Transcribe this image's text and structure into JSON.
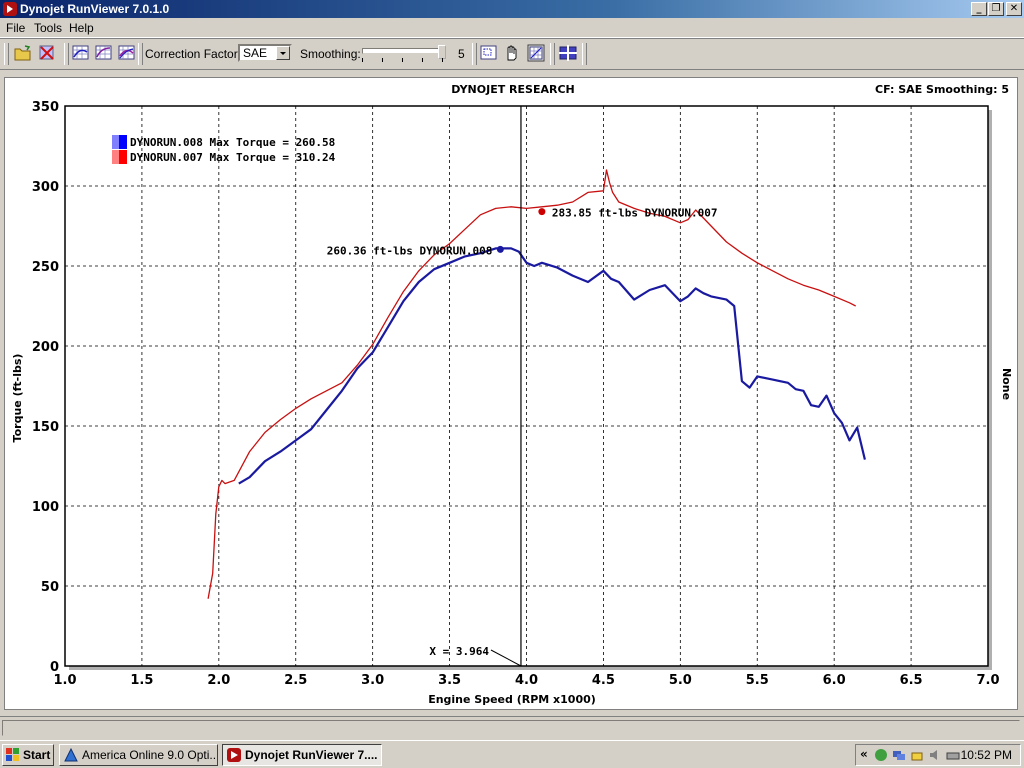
{
  "window": {
    "title": "Dynojet RunViewer 7.0.1.0"
  },
  "menu": [
    "File",
    "Tools",
    "Help"
  ],
  "toolbar": {
    "correction_factor_label": "Correction Factor:",
    "correction_factor_value": "SAE",
    "smoothing_label": "Smoothing:",
    "smoothing_value": "5",
    "smoothing_level_fraction": 1.0
  },
  "header": {
    "title": "DYNOJET RESEARCH",
    "status": "CF: SAE  Smoothing: 5",
    "side_label": "None"
  },
  "chart_data": {
    "type": "line",
    "xlabel": "Engine Speed (RPM x1000)",
    "ylabel": "Torque (ft-lbs)",
    "xlim": [
      1.0,
      7.0
    ],
    "ylim": [
      0,
      350
    ],
    "xticks": [
      "1.0",
      "1.5",
      "2.0",
      "2.5",
      "3.0",
      "3.5",
      "4.0",
      "4.5",
      "5.0",
      "5.5",
      "6.0",
      "6.5",
      "7.0"
    ],
    "yticks": [
      "0",
      "50",
      "100",
      "150",
      "200",
      "250",
      "300",
      "350"
    ],
    "grid": true,
    "legend": [
      {
        "label": "DYNORUN.008 Max Torque = 260.58",
        "color": "#0000ff"
      },
      {
        "label": "DYNORUN.007 Max Torque = 310.24",
        "color": "#ff0000"
      }
    ],
    "cursor": {
      "x": 3.964,
      "label": "X = 3.964"
    },
    "annotations": [
      {
        "text": "283.85 ft-lbs DYNORUN.007",
        "x": 4.1,
        "y": 284,
        "color": "#cc0000"
      },
      {
        "text": "260.36 ft-lbs DYNORUN.008",
        "x": 3.83,
        "y": 260.4,
        "color": "#1a1aa0"
      }
    ],
    "series": [
      {
        "name": "DYNORUN.008",
        "color": "#1a1aa0",
        "x": [
          2.13,
          2.2,
          2.3,
          2.4,
          2.5,
          2.6,
          2.7,
          2.8,
          2.9,
          3.0,
          3.1,
          3.2,
          3.3,
          3.4,
          3.5,
          3.6,
          3.7,
          3.8,
          3.9,
          3.95,
          4.0,
          4.05,
          4.1,
          4.2,
          4.3,
          4.4,
          4.5,
          4.55,
          4.6,
          4.7,
          4.8,
          4.9,
          5.0,
          5.05,
          5.1,
          5.15,
          5.2,
          5.3,
          5.35,
          5.4,
          5.45,
          5.5,
          5.6,
          5.7,
          5.75,
          5.8,
          5.85,
          5.9,
          5.95,
          6.0,
          6.05,
          6.1,
          6.15,
          6.2
        ],
        "y": [
          114,
          118,
          128,
          134,
          141,
          148,
          160,
          172,
          186,
          196,
          212,
          228,
          240,
          248,
          252,
          256,
          258,
          261,
          261,
          259,
          252,
          250,
          252,
          249,
          244,
          240,
          247,
          242,
          240,
          229,
          235,
          238,
          228,
          231,
          236,
          233,
          231,
          229,
          225,
          178,
          174,
          181,
          179,
          177,
          173,
          172,
          163,
          162,
          169,
          158,
          152,
          141,
          149,
          129
        ]
      },
      {
        "name": "DYNORUN.007",
        "color": "#c81010",
        "x": [
          1.93,
          1.96,
          1.98,
          2.0,
          2.02,
          2.04,
          2.1,
          2.2,
          2.3,
          2.4,
          2.5,
          2.6,
          2.7,
          2.8,
          2.9,
          3.0,
          3.1,
          3.2,
          3.3,
          3.4,
          3.5,
          3.6,
          3.7,
          3.8,
          3.9,
          4.0,
          4.1,
          4.2,
          4.3,
          4.4,
          4.5,
          4.52,
          4.54,
          4.56,
          4.6,
          4.7,
          4.8,
          4.9,
          5.0,
          5.05,
          5.1,
          5.2,
          5.3,
          5.4,
          5.5,
          5.6,
          5.7,
          5.8,
          5.9,
          6.0,
          6.1,
          6.14
        ],
        "y": [
          42,
          58,
          95,
          112,
          116,
          114,
          116,
          134,
          146,
          154,
          161,
          167,
          172,
          177,
          188,
          201,
          218,
          234,
          247,
          257,
          264,
          273,
          282,
          286,
          287,
          286,
          287,
          288,
          290,
          296,
          297,
          310,
          302,
          296,
          290,
          286,
          283,
          281,
          277,
          279,
          285,
          275,
          265,
          258,
          252,
          247,
          242,
          238,
          235,
          231,
          227,
          225
        ]
      }
    ]
  },
  "taskbar": {
    "start_label": "Start",
    "tasks": [
      {
        "label": "America Online 9.0 Opti...",
        "active": false
      },
      {
        "label": "Dynojet RunViewer 7....",
        "active": true
      }
    ],
    "clock": "10:52 PM"
  }
}
